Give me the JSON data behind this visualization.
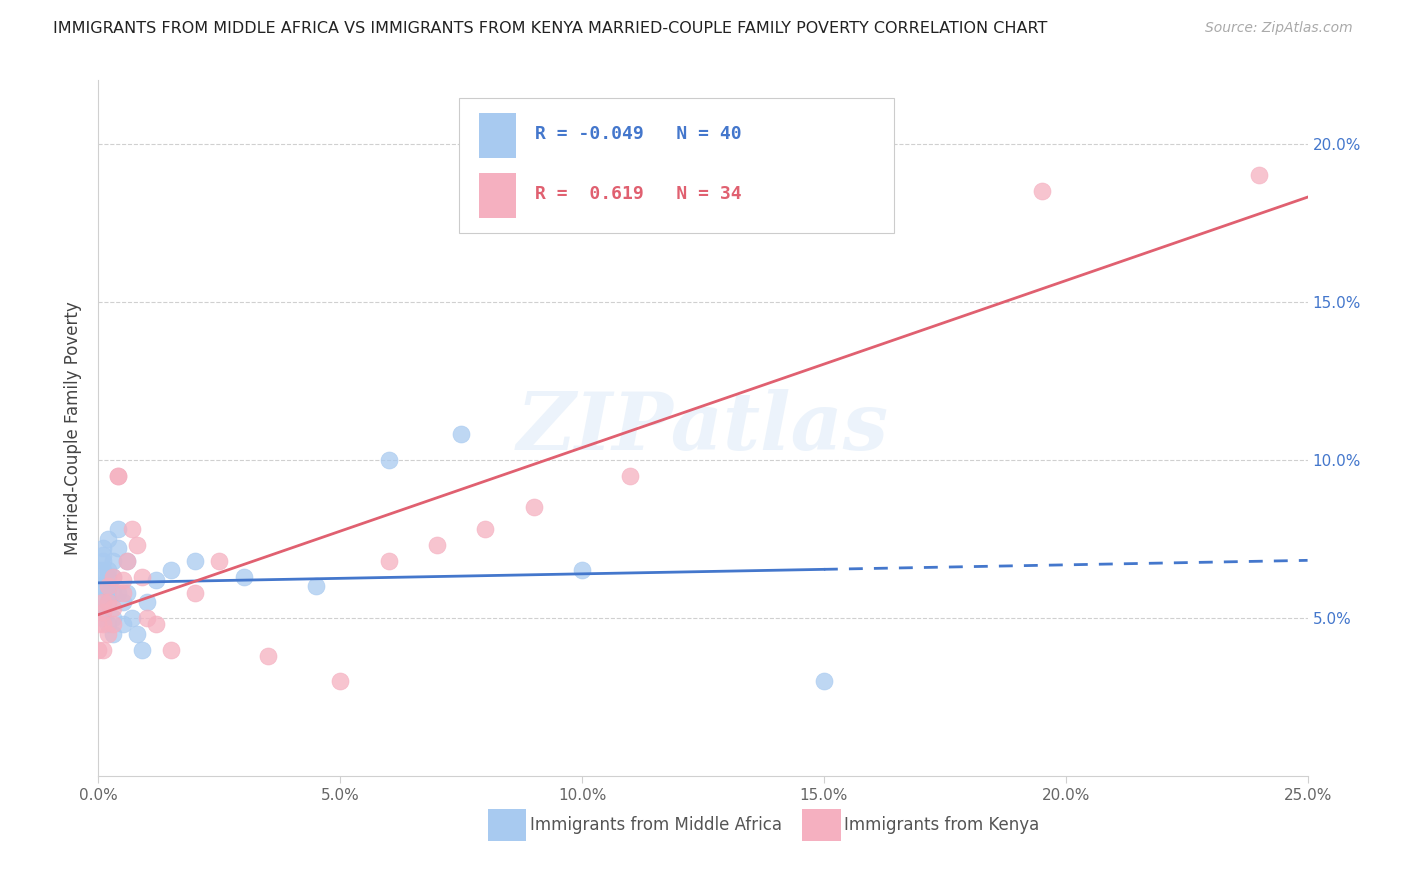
{
  "title": "IMMIGRANTS FROM MIDDLE AFRICA VS IMMIGRANTS FROM KENYA MARRIED-COUPLE FAMILY POVERTY CORRELATION CHART",
  "source": "Source: ZipAtlas.com",
  "ylabel": "Married-Couple Family Poverty",
  "r_blue": -0.049,
  "n_blue": 40,
  "r_pink": 0.619,
  "n_pink": 34,
  "legend_label_blue": "Immigrants from Middle Africa",
  "legend_label_pink": "Immigrants from Kenya",
  "watermark": "ZIPatlas",
  "blue_color": "#a8caf0",
  "pink_color": "#f5b0c0",
  "blue_line_color": "#4477cc",
  "pink_line_color": "#e06070",
  "xlim": [
    0.0,
    0.25
  ],
  "ylim": [
    0.0,
    0.22
  ],
  "ytick_vals": [
    0.05,
    0.1,
    0.15,
    0.2
  ],
  "ytick_labels": [
    "5.0%",
    "10.0%",
    "15.0%",
    "20.0%"
  ],
  "xtick_vals": [
    0.0,
    0.05,
    0.1,
    0.15,
    0.2,
    0.25
  ],
  "xtick_labels": [
    "0.0%",
    "5.0%",
    "10.0%",
    "15.0%",
    "20.0%",
    "25.0%"
  ],
  "blue_x": [
    0.0,
    0.0,
    0.001,
    0.001,
    0.001,
    0.001,
    0.001,
    0.001,
    0.001,
    0.002,
    0.002,
    0.002,
    0.002,
    0.002,
    0.002,
    0.003,
    0.003,
    0.003,
    0.003,
    0.003,
    0.004,
    0.004,
    0.004,
    0.005,
    0.005,
    0.006,
    0.006,
    0.007,
    0.008,
    0.009,
    0.01,
    0.012,
    0.015,
    0.02,
    0.03,
    0.045,
    0.06,
    0.075,
    0.1,
    0.15
  ],
  "blue_y": [
    0.065,
    0.06,
    0.068,
    0.072,
    0.06,
    0.055,
    0.05,
    0.065,
    0.07,
    0.075,
    0.063,
    0.058,
    0.048,
    0.065,
    0.055,
    0.068,
    0.063,
    0.058,
    0.045,
    0.05,
    0.072,
    0.078,
    0.058,
    0.055,
    0.048,
    0.068,
    0.058,
    0.05,
    0.045,
    0.04,
    0.055,
    0.062,
    0.065,
    0.068,
    0.063,
    0.06,
    0.1,
    0.108,
    0.065,
    0.03
  ],
  "pink_x": [
    0.0,
    0.0,
    0.001,
    0.001,
    0.001,
    0.001,
    0.002,
    0.002,
    0.002,
    0.003,
    0.003,
    0.003,
    0.004,
    0.004,
    0.005,
    0.005,
    0.006,
    0.007,
    0.008,
    0.009,
    0.01,
    0.012,
    0.015,
    0.02,
    0.025,
    0.035,
    0.05,
    0.06,
    0.07,
    0.08,
    0.09,
    0.11,
    0.195,
    0.24
  ],
  "pink_y": [
    0.048,
    0.04,
    0.055,
    0.048,
    0.04,
    0.052,
    0.06,
    0.055,
    0.045,
    0.063,
    0.053,
    0.048,
    0.095,
    0.095,
    0.062,
    0.058,
    0.068,
    0.078,
    0.073,
    0.063,
    0.05,
    0.048,
    0.04,
    0.058,
    0.068,
    0.038,
    0.03,
    0.068,
    0.073,
    0.078,
    0.085,
    0.095,
    0.185,
    0.19
  ]
}
